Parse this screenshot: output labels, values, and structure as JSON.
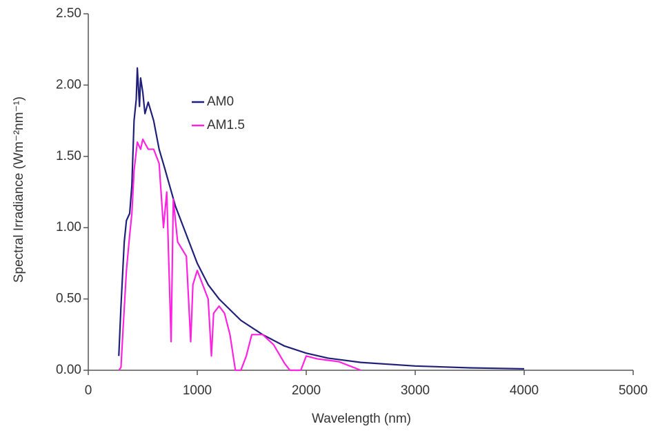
{
  "chart_data": {
    "type": "line",
    "x_label": "Wavelength (nm)",
    "y_label": "Spectral Irradiance (Wm⁻²nm⁻¹)",
    "xlim": [
      0,
      5000
    ],
    "xticks": [
      0,
      1000,
      2000,
      3000,
      4000,
      5000
    ],
    "ylim": [
      0,
      2.5
    ],
    "yticks": [
      {
        "value": 0,
        "label": "0.00"
      },
      {
        "value": 0.5,
        "label": "0.50"
      },
      {
        "value": 1,
        "label": "1.00"
      },
      {
        "value": 1.5,
        "label": "1.50"
      },
      {
        "value": 2,
        "label": "2.00"
      },
      {
        "value": 2.5,
        "label": "2.50"
      }
    ],
    "grid": false,
    "series": [
      {
        "name": "AM0",
        "color": "#1f1f7a",
        "x": [
          280,
          300,
          330,
          350,
          380,
          400,
          420,
          440,
          450,
          470,
          480,
          500,
          520,
          550,
          600,
          650,
          700,
          800,
          900,
          1000,
          1100,
          1200,
          1400,
          1600,
          1800,
          2000,
          2200,
          2500,
          3000,
          3500,
          4000
        ],
        "values": [
          0.1,
          0.45,
          0.9,
          1.05,
          1.1,
          1.3,
          1.75,
          1.9,
          2.12,
          1.85,
          2.05,
          1.95,
          1.8,
          1.88,
          1.75,
          1.55,
          1.42,
          1.15,
          0.95,
          0.75,
          0.6,
          0.5,
          0.35,
          0.25,
          0.17,
          0.12,
          0.085,
          0.055,
          0.03,
          0.017,
          0.01
        ]
      },
      {
        "name": "AM1.5",
        "color": "#ff22e0",
        "x": [
          280,
          300,
          320,
          350,
          380,
          400,
          420,
          450,
          480,
          500,
          550,
          600,
          650,
          690,
          720,
          760,
          780,
          820,
          900,
          940,
          960,
          1000,
          1100,
          1130,
          1150,
          1200,
          1250,
          1300,
          1350,
          1400,
          1450,
          1500,
          1600,
          1700,
          1800,
          1850,
          1950,
          2000,
          2100,
          2200,
          2300,
          2400,
          2500
        ],
        "values": [
          0,
          0.02,
          0.3,
          0.7,
          0.95,
          1.1,
          1.4,
          1.6,
          1.55,
          1.62,
          1.55,
          1.55,
          1.45,
          1.0,
          1.25,
          0.2,
          1.2,
          0.9,
          0.8,
          0.2,
          0.6,
          0.7,
          0.5,
          0.1,
          0.4,
          0.45,
          0.4,
          0.25,
          0.0,
          0.0,
          0.1,
          0.25,
          0.25,
          0.18,
          0.05,
          0.0,
          0.0,
          0.1,
          0.08,
          0.07,
          0.06,
          0.03,
          0.0
        ]
      }
    ]
  }
}
